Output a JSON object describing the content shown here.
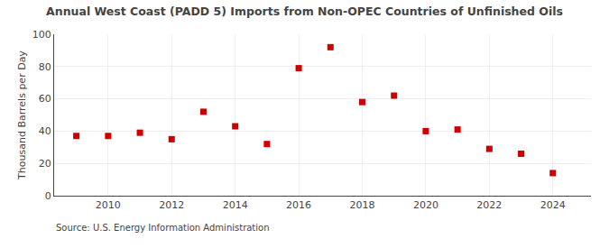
{
  "chart_data": {
    "type": "scatter",
    "title": "Annual West Coast (PADD 5) Imports from Non-OPEC Countries of Unfinished Oils",
    "ylabel": "Thousand Barrels per Day",
    "annotations": [
      "Source: U.S. Energy Information Administration"
    ],
    "x": [
      2009,
      2010,
      2011,
      2012,
      2013,
      2014,
      2015,
      2016,
      2017,
      2018,
      2019,
      2020,
      2021,
      2022,
      2023,
      2024
    ],
    "values": [
      37,
      37,
      39,
      35,
      52,
      43,
      32,
      79,
      92,
      58,
      62,
      40,
      41,
      29,
      26,
      14
    ],
    "color": "#cc0000",
    "marker": "square",
    "xlim": [
      2008.3,
      2025.2
    ],
    "xticks": [
      2010,
      2012,
      2014,
      2016,
      2018,
      2020,
      2022,
      2024
    ],
    "ylim": [
      0,
      100
    ],
    "yticks": [
      0,
      20,
      40,
      60,
      80,
      100
    ],
    "grid": true
  }
}
